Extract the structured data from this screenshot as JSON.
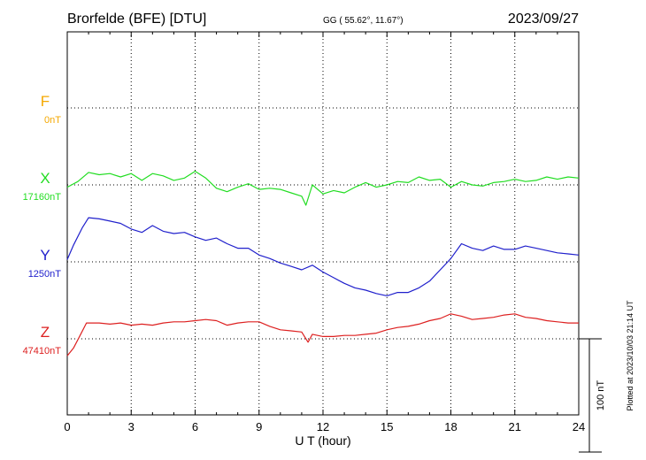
{
  "header": {
    "station": "Brorfelde (BFE)  [DTU]",
    "coords": "GG ( 55.62°,  11.67°)",
    "date": "2023/09/27"
  },
  "side_note": "Plotted at 2023/10/03 21:14 UT",
  "chart_data": {
    "type": "line",
    "xlabel": "U T (hour)",
    "xlim": [
      0,
      24
    ],
    "xticks": [
      0,
      3,
      6,
      9,
      12,
      15,
      18,
      21,
      24
    ],
    "xtick_labels": [
      "0",
      "3",
      "6",
      "9",
      "12",
      "15",
      "18",
      "21",
      "24"
    ],
    "scale_bar": {
      "label": "100 nT",
      "value_nT": 100
    },
    "grid": true,
    "channels": [
      {
        "name": "F",
        "baseline": "0nT",
        "color": "#f5a800",
        "baseline_nT": 0
      },
      {
        "name": "X",
        "baseline": "17160nT",
        "color": "#22dd22",
        "baseline_nT": 17160
      },
      {
        "name": "Y",
        "baseline": "1250nT",
        "color": "#2020cc",
        "baseline_nT": 1250
      },
      {
        "name": "Z",
        "baseline": "47410nT",
        "color": "#dd2020",
        "baseline_nT": 47410
      }
    ],
    "series": [
      {
        "name": "X",
        "x": [
          0,
          0.5,
          1,
          1.5,
          2,
          2.5,
          3,
          3.5,
          4,
          4.5,
          5,
          5.5,
          6,
          6.5,
          7,
          7.5,
          8,
          8.5,
          9,
          9.5,
          10,
          10.5,
          11,
          11.2,
          11.5,
          12,
          12.5,
          13,
          13.5,
          14,
          14.5,
          15,
          15.5,
          16,
          16.5,
          17,
          17.5,
          18,
          18.5,
          19,
          19.5,
          20,
          20.5,
          21,
          21.5,
          22,
          22.5,
          23,
          23.5,
          24
        ],
        "y": [
          17158,
          17163,
          17171,
          17169,
          17170,
          17167,
          17170,
          17164,
          17170,
          17168,
          17164,
          17166,
          17172,
          17166,
          17157,
          17154,
          17158,
          17161,
          17156,
          17157,
          17156,
          17153,
          17150,
          17142,
          17160,
          17152,
          17155,
          17153,
          17158,
          17162,
          17158,
          17160,
          17163,
          17162,
          17167,
          17164,
          17165,
          17158,
          17163,
          17160,
          17159,
          17162,
          17163,
          17165,
          17163,
          17164,
          17167,
          17165,
          17167,
          17166
        ]
      },
      {
        "name": "Y",
        "x": [
          0,
          0.3,
          0.7,
          1,
          1.5,
          2,
          2.5,
          3,
          3.5,
          4,
          4.5,
          5,
          5.5,
          6,
          6.5,
          7,
          7.5,
          8,
          8.5,
          9,
          9.5,
          10,
          10.5,
          11,
          11.5,
          12,
          12.5,
          13,
          13.5,
          14,
          14.5,
          15,
          15.5,
          16,
          16.5,
          17,
          17.5,
          18,
          18.5,
          19,
          19.5,
          20,
          20.5,
          21,
          21.5,
          22,
          22.5,
          23,
          23.5,
          24
        ],
        "y": [
          1252,
          1265,
          1280,
          1289,
          1288,
          1286,
          1284,
          1279,
          1276,
          1282,
          1277,
          1275,
          1276,
          1272,
          1269,
          1271,
          1266,
          1262,
          1262,
          1256,
          1253,
          1249,
          1246,
          1243,
          1247,
          1241,
          1236,
          1231,
          1227,
          1225,
          1222,
          1220,
          1223,
          1223,
          1227,
          1233,
          1243,
          1253,
          1266,
          1262,
          1260,
          1264,
          1261,
          1261,
          1264,
          1262,
          1260,
          1258,
          1257,
          1256
        ]
      },
      {
        "name": "Z",
        "x": [
          0,
          0.3,
          0.6,
          0.9,
          1.5,
          2,
          2.5,
          3,
          3.5,
          4,
          4.5,
          5,
          5.5,
          6,
          6.5,
          7,
          7.5,
          8,
          8.5,
          9,
          9.5,
          10,
          10.5,
          11,
          11.3,
          11.5,
          12,
          12.5,
          13,
          13.5,
          14,
          14.5,
          15,
          15.5,
          16,
          16.5,
          17,
          17.5,
          18,
          18.5,
          19,
          19.5,
          20,
          20.5,
          21,
          21.5,
          22,
          22.5,
          23,
          23.5,
          24
        ],
        "y": [
          47395,
          47402,
          47413,
          47424,
          47424,
          47423,
          47424,
          47422,
          47423,
          47422,
          47424,
          47425,
          47425,
          47426,
          47427,
          47426,
          47422,
          47424,
          47425,
          47425,
          47421,
          47418,
          47417,
          47416,
          47407,
          47414,
          47412,
          47412,
          47413,
          47413,
          47414,
          47415,
          47418,
          47420,
          47421,
          47423,
          47426,
          47428,
          47432,
          47430,
          47427,
          47428,
          47429,
          47431,
          47432,
          47429,
          47428,
          47426,
          47425,
          47424,
          47424
        ]
      }
    ]
  }
}
